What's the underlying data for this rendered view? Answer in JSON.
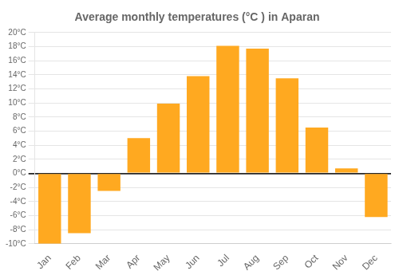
{
  "chart_data": {
    "type": "bar",
    "title": "Average monthly temperatures (°C ) in Aparan",
    "categories": [
      "Jan",
      "Feb",
      "Mar",
      "Apr",
      "May",
      "Jun",
      "Jul",
      "Aug",
      "Sep",
      "Oct",
      "Nov",
      "Dec"
    ],
    "values": [
      -10,
      -8.5,
      -2.5,
      5,
      9.9,
      13.8,
      18.1,
      17.7,
      13.5,
      6.5,
      0.7,
      -6.2
    ],
    "color": "#FFA920",
    "ylim": [
      -10,
      20
    ],
    "yticks": [
      {
        "value": -10,
        "label": "-10°C"
      },
      {
        "value": -8,
        "label": "-8°C"
      },
      {
        "value": -6,
        "label": "-6°C"
      },
      {
        "value": -4,
        "label": "-4°C"
      },
      {
        "value": -2,
        "label": "-2°C"
      },
      {
        "value": 0,
        "label": "0°C"
      },
      {
        "value": 2,
        "label": "2°C"
      },
      {
        "value": 4,
        "label": "4°C"
      },
      {
        "value": 6,
        "label": "6°C"
      },
      {
        "value": 8,
        "label": "8°C"
      },
      {
        "value": 10,
        "label": "10°C"
      },
      {
        "value": 12,
        "label": "12°C"
      },
      {
        "value": 14,
        "label": "14°C"
      },
      {
        "value": 16,
        "label": "16°C"
      },
      {
        "value": 18,
        "label": "18°C"
      },
      {
        "value": 20,
        "label": "20°C"
      }
    ],
    "grid": true
  }
}
